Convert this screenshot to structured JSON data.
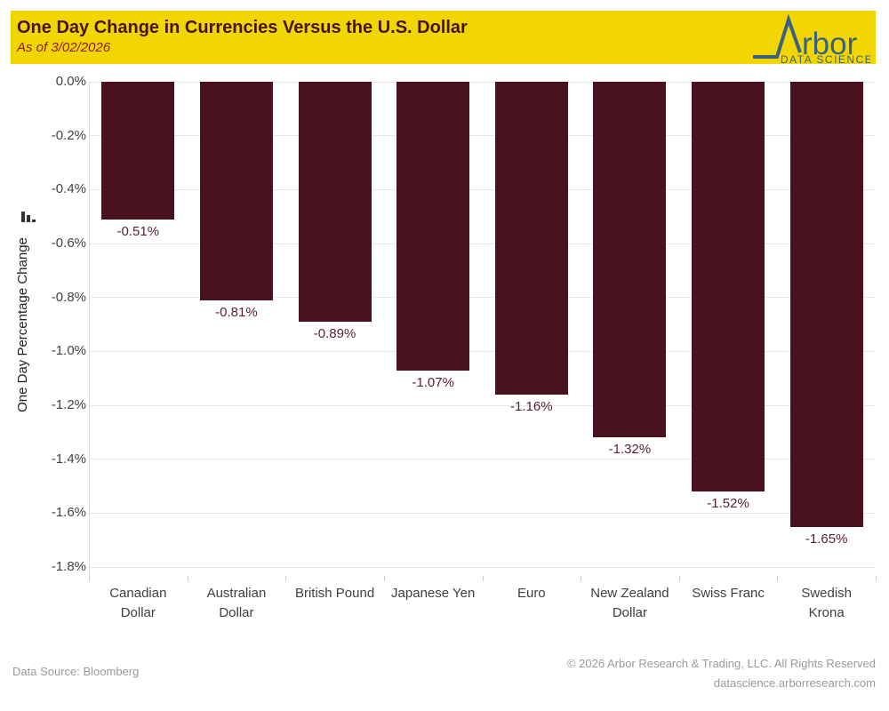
{
  "header": {
    "title": "One Day Change in Currencies Versus the U.S. Dollar",
    "subtitle": "As of 3/02/2026",
    "band_color": "#F2D602",
    "title_color": "#46131F",
    "subtitle_color": "#8C1E28"
  },
  "logo": {
    "brand": "rbor",
    "tagline": "DATA SCIENCE",
    "color": "#3A627E"
  },
  "chart_data": {
    "type": "bar",
    "title": "One Day Change in Currencies Versus the U.S. Dollar",
    "subtitle": "As of 3/02/2026",
    "categories": [
      "Canadian Dollar",
      "Australian Dollar",
      "British Pound",
      "Japanese Yen",
      "Euro",
      "New Zealand Dollar",
      "Swiss Franc",
      "Swedish Krona"
    ],
    "values": [
      -0.51,
      -0.81,
      -0.89,
      -1.07,
      -1.16,
      -1.32,
      -1.52,
      -1.65
    ],
    "bar_labels": [
      "-0.51%",
      "-0.81%",
      "-0.89%",
      "-1.07%",
      "-1.16%",
      "-1.32%",
      "-1.52%",
      "-1.65%"
    ],
    "ylabel": "One Day Percentage Change",
    "y_ticks": [
      "0.0%",
      "-0.2%",
      "-0.4%",
      "-0.6%",
      "-0.8%",
      "-1.0%",
      "-1.2%",
      "-1.4%",
      "-1.6%",
      "-1.8%"
    ],
    "ylim": [
      -1.8,
      0
    ],
    "grid": true,
    "legend": false,
    "bar_color": "#4A121E",
    "label_color": "#5B2130"
  },
  "footer": {
    "source": "Data Source: Bloomberg",
    "copyright": "© 2026 Arbor Research & Trading, LLC. All Rights Reserved",
    "website": "datascience.arborresearch.com"
  }
}
